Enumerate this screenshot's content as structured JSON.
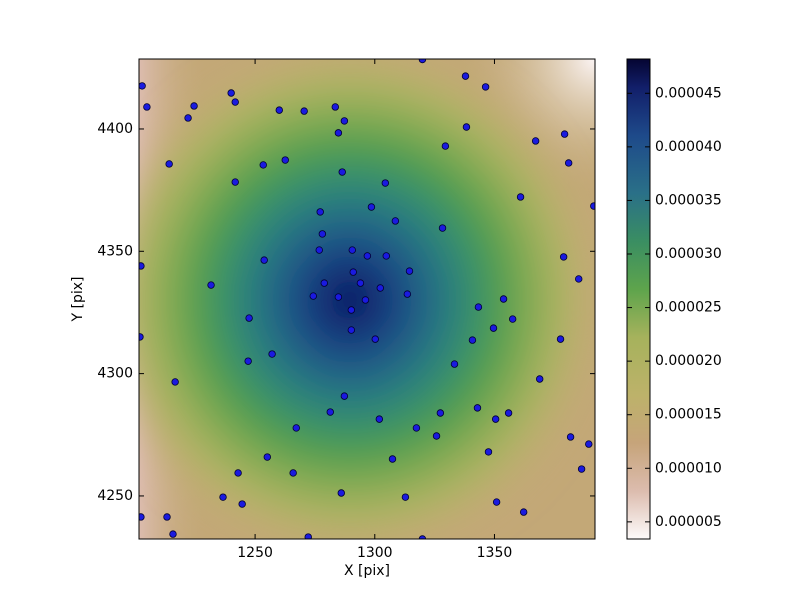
{
  "chart_data": {
    "type": "scatter",
    "x_label": "X [pix]",
    "y_label": "Y [pix]",
    "xlim": [
      1201.5,
      1392
    ],
    "ylim": [
      4232.4,
      4428.6
    ],
    "xticks": [
      1250,
      1300,
      1350
    ],
    "yticks": [
      4250,
      4300,
      4350,
      4400
    ],
    "color": "#1a1ae0",
    "x": [
      1202.8,
      1204.8,
      1224.5,
      1222.0,
      1240.0,
      1241.7,
      1260.1,
      1270.5,
      1283.5,
      1287.3,
      1284.8,
      1337.9,
      1346.3,
      1338.3,
      1329.5,
      1367.2,
      1379.3,
      1381.0,
      1214.1,
      1241.7,
      1253.4,
      1262.6,
      1286.4,
      1304.4,
      1360.9,
      1298.6,
      1308.6,
      1328.3,
      1391.5,
      1277.2,
      1278.1,
      1276.8,
      1290.6,
      1296.9,
      1304.8,
      1314.5,
      1378.9,
      1385.2,
      1202.3,
      1253.8,
      1231.6,
      1274.3,
      1278.9,
      1284.8,
      1302.3,
      1313.6,
      1343.3,
      1353.8,
      1357.6,
      1349.6,
      1340.8,
      1333.3,
      1290.2,
      1300.2,
      1290.2,
      1247.5,
      1247.1,
      1257.1,
      1201.9,
      1377.6,
      1368.9,
      1287.3,
      1281.4,
      1301.9,
      1317.4,
      1327.4,
      1342.9,
      1350.5,
      1355.9,
      1267.2,
      1325.8,
      1381.8,
      1389.4,
      1307.4,
      1347.5,
      1255.1,
      1242.9,
      1265.9,
      1312.8,
      1236.6,
      1244.6,
      1286.0,
      1350.9,
      1386.4,
      1362.2,
      1202.3,
      1213.2,
      1215.7,
      1272.2,
      1319.9,
      1216.6,
      1319.9,
      1291.0,
      1294.0,
      1296.1
    ],
    "values": [
      4417.6,
      4409.0,
      4409.4,
      4404.5,
      4414.7,
      4411.0,
      4407.7,
      4407.3,
      4409.0,
      4403.3,
      4398.4,
      4421.6,
      4417.2,
      4400.8,
      4393.0,
      4395.1,
      4397.9,
      4386.1,
      4385.7,
      4378.3,
      4385.3,
      4387.3,
      4382.4,
      4377.9,
      4372.2,
      4368.1,
      4362.4,
      4359.5,
      4368.5,
      4366.1,
      4357.1,
      4350.5,
      4350.5,
      4348.1,
      4348.1,
      4341.9,
      4347.7,
      4338.7,
      4344.0,
      4346.4,
      4336.2,
      4331.7,
      4337.0,
      4331.3,
      4335.0,
      4332.5,
      4327.2,
      4330.5,
      4322.3,
      4318.6,
      4313.7,
      4303.9,
      4326.0,
      4314.1,
      4317.8,
      4322.7,
      4305.1,
      4308.0,
      4315.0,
      4314.1,
      4297.8,
      4290.8,
      4284.3,
      4281.4,
      4277.8,
      4283.9,
      4286.0,
      4281.4,
      4283.9,
      4277.8,
      4274.5,
      4274.1,
      4271.2,
      4265.1,
      4268.0,
      4265.9,
      4259.4,
      4259.4,
      4249.5,
      4249.5,
      4246.7,
      4251.2,
      4247.5,
      4261.0,
      4243.4,
      4241.4,
      4241.4,
      4234.4,
      4233.2,
      4232.4,
      4296.6,
      4428.4,
      4341.5,
      4337.0,
      4330.1
    ],
    "clim": [
      3.4e-06,
      4.82e-05
    ],
    "cticks": [
      {
        "value": 5e-06,
        "label": "0.000005"
      },
      {
        "value": 1e-05,
        "label": "0.000010"
      },
      {
        "value": 1.5e-05,
        "label": "0.000015"
      },
      {
        "value": 2e-05,
        "label": "0.000020"
      },
      {
        "value": 2.5e-05,
        "label": "0.000025"
      },
      {
        "value": 3e-05,
        "label": "0.000030"
      },
      {
        "value": 3.5e-05,
        "label": "0.000035"
      },
      {
        "value": 4e-05,
        "label": "0.000040"
      },
      {
        "value": 4.5e-05,
        "label": "0.000045"
      }
    ]
  }
}
